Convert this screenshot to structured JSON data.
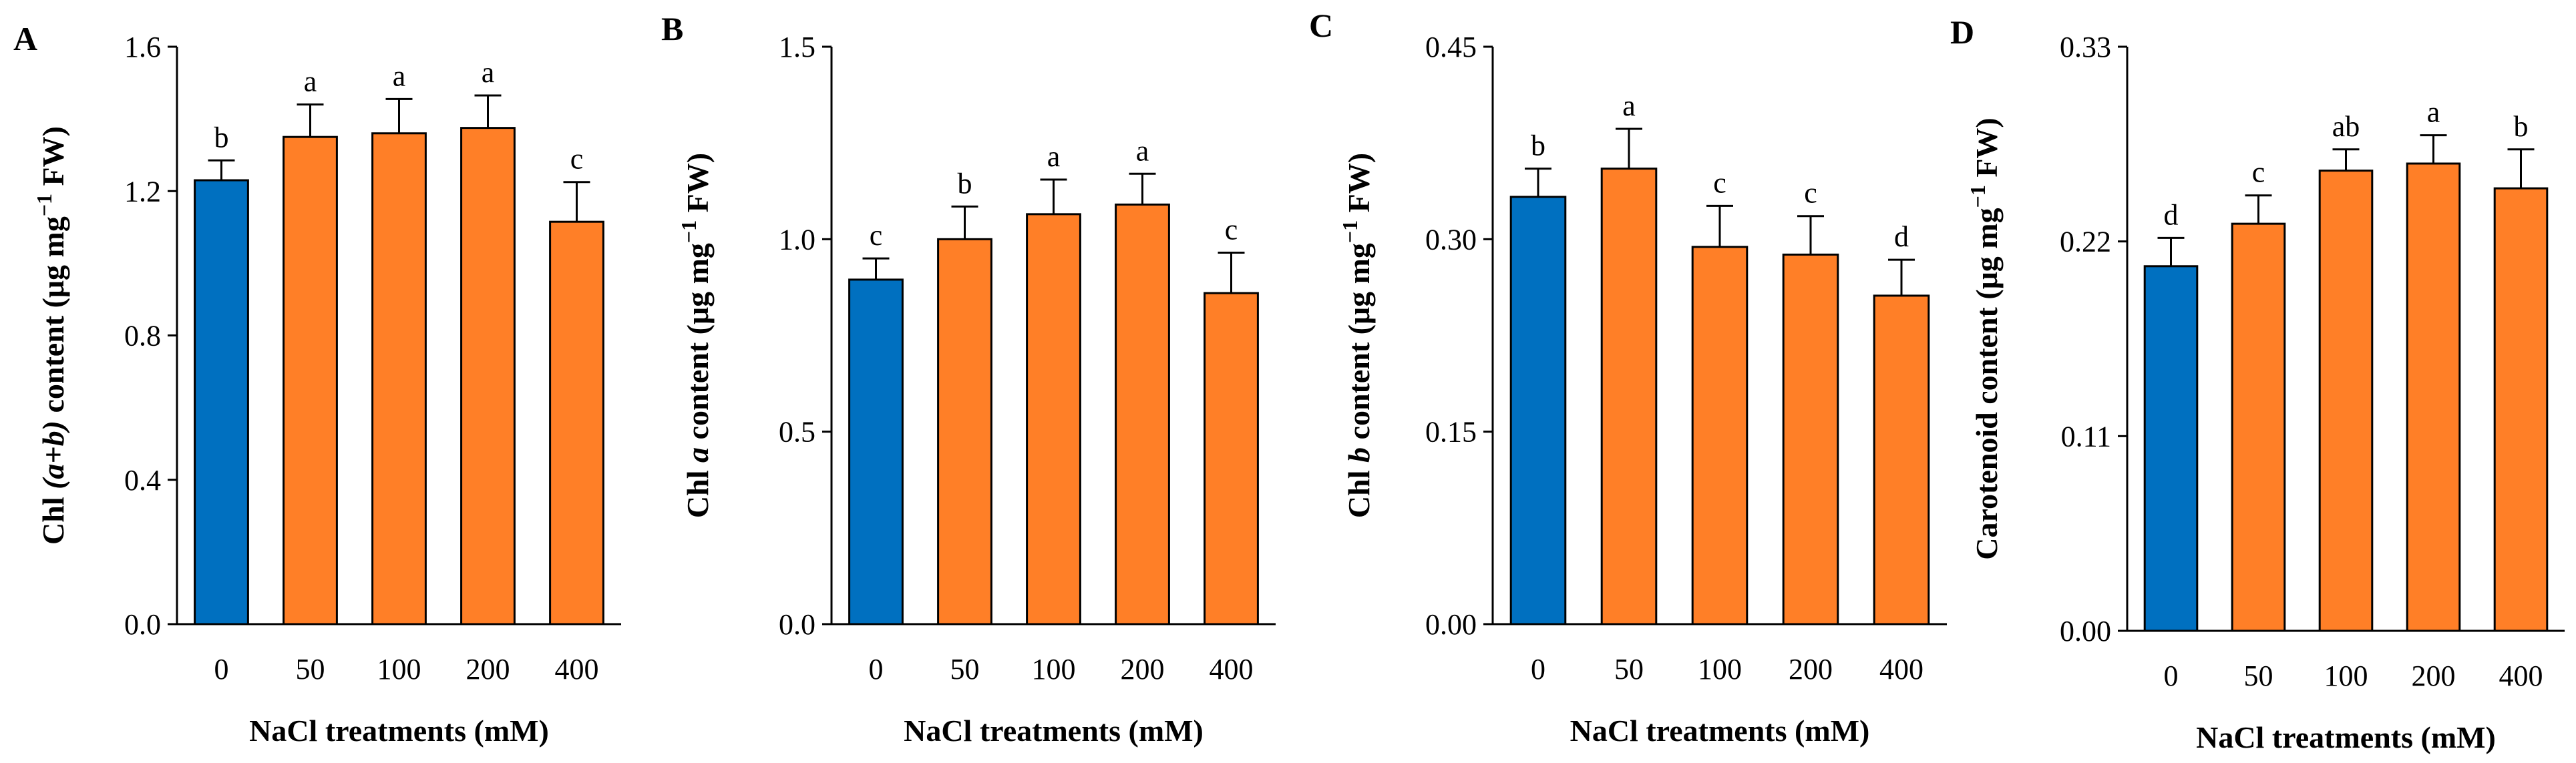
{
  "colors": {
    "control": "#0070C0",
    "treatment": "#FF7F27",
    "axis": "#000000"
  },
  "chart_data": [
    {
      "type": "bar",
      "panel": "A",
      "title": "",
      "ylabel_parts": [
        {
          "t": "Chl ",
          "italic": false
        },
        {
          "t": "(a+b)",
          "italic": true
        },
        {
          "t": " content (μg mg",
          "italic": false
        },
        {
          "t": "−1",
          "sup": true
        },
        {
          "t": " FW)",
          "italic": false
        }
      ],
      "xlabel": "NaCl treatments (mM)",
      "categories": [
        "0",
        "50",
        "100",
        "200",
        "400"
      ],
      "values": [
        1.23,
        1.35,
        1.36,
        1.375,
        1.115
      ],
      "errors": [
        0.055,
        0.09,
        0.095,
        0.09,
        0.11
      ],
      "letters": [
        "b",
        "a",
        "a",
        "a",
        "c"
      ],
      "ylim": [
        0,
        1.6
      ],
      "yticks": [
        "0.0",
        "0.4",
        "0.8",
        "1.2",
        "1.6"
      ]
    },
    {
      "type": "bar",
      "panel": "B",
      "title": "",
      "ylabel_parts": [
        {
          "t": "Chl ",
          "italic": false
        },
        {
          "t": "a",
          "italic": true
        },
        {
          "t": "  content (μg mg",
          "italic": false
        },
        {
          "t": "−1",
          "sup": true
        },
        {
          "t": " FW)",
          "italic": false
        }
      ],
      "xlabel": "NaCl treatments (mM)",
      "categories": [
        "0",
        "50",
        "100",
        "200",
        "400"
      ],
      "values": [
        0.895,
        1.0,
        1.065,
        1.09,
        0.86
      ],
      "errors": [
        0.055,
        0.085,
        0.09,
        0.08,
        0.105
      ],
      "letters": [
        "c",
        "b",
        "a",
        "a",
        "c"
      ],
      "ylim": [
        0,
        1.5
      ],
      "yticks": [
        "0.0",
        "0.5",
        "1.0",
        "1.5"
      ]
    },
    {
      "type": "bar",
      "panel": "C",
      "title": "",
      "ylabel_parts": [
        {
          "t": "Chl ",
          "italic": false
        },
        {
          "t": "b",
          "italic": true
        },
        {
          "t": "  content (μg mg",
          "italic": false
        },
        {
          "t": "−1",
          "sup": true
        },
        {
          "t": " FW)",
          "italic": false
        }
      ],
      "xlabel": "NaCl treatments (mM)",
      "categories": [
        "0",
        "50",
        "100",
        "200",
        "400"
      ],
      "values": [
        0.333,
        0.355,
        0.294,
        0.288,
        0.256
      ],
      "errors": [
        0.022,
        0.031,
        0.032,
        0.03,
        0.028
      ],
      "letters": [
        "b",
        "a",
        "c",
        "c",
        "d"
      ],
      "ylim": [
        0,
        0.45
      ],
      "yticks": [
        "0.00",
        "0.15",
        "0.30",
        "0.45"
      ]
    },
    {
      "type": "bar",
      "panel": "D",
      "title": "",
      "ylabel_parts": [
        {
          "t": "Carotenoid content (μg mg",
          "italic": false
        },
        {
          "t": "−1",
          "sup": true
        },
        {
          "t": " FW)",
          "italic": false
        }
      ],
      "xlabel": "NaCl treatments (mM)",
      "categories": [
        "0",
        "50",
        "100",
        "200",
        "400"
      ],
      "values": [
        0.206,
        0.23,
        0.26,
        0.264,
        0.25
      ],
      "errors": [
        0.016,
        0.016,
        0.012,
        0.016,
        0.022
      ],
      "letters": [
        "d",
        "c",
        "ab",
        "a",
        "b"
      ],
      "ylim": [
        0,
        0.33
      ],
      "yticks": [
        "0.00",
        "0.11",
        "0.22",
        "0.33"
      ]
    }
  ]
}
